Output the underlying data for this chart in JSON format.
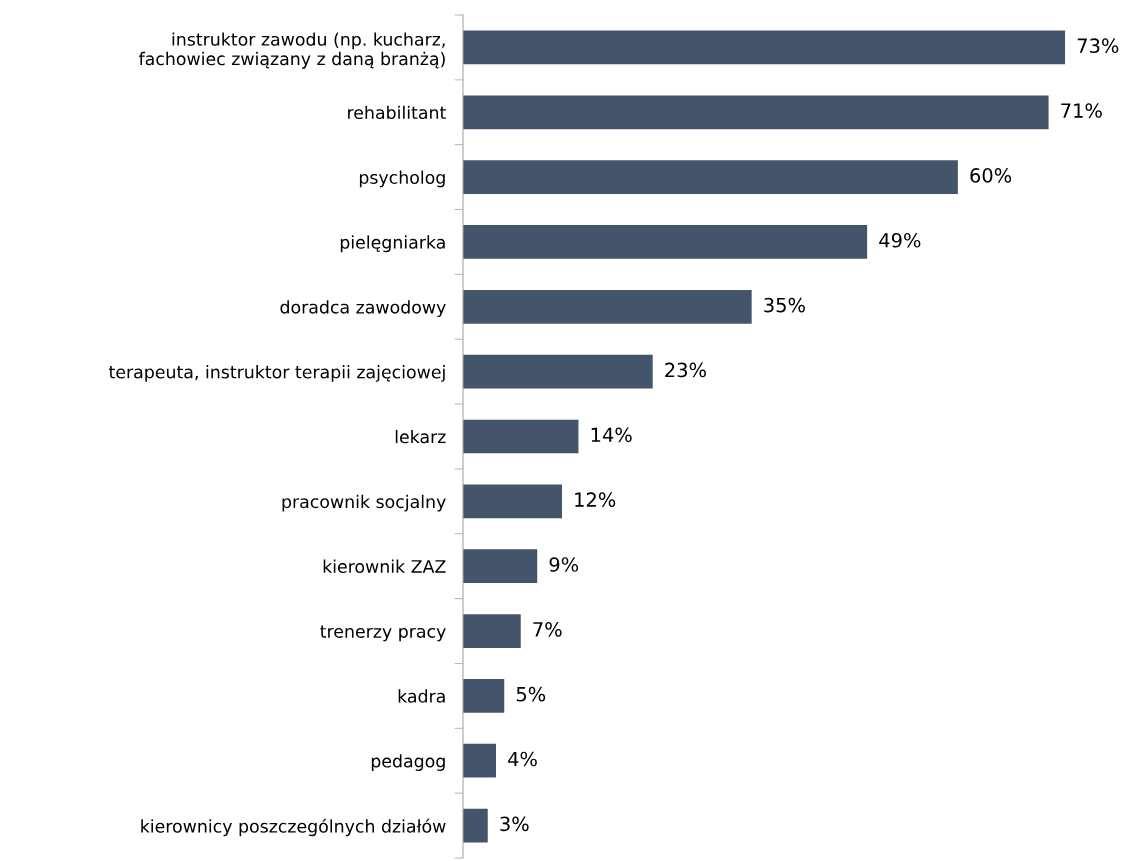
{
  "chart_data": {
    "type": "bar",
    "orientation": "horizontal",
    "categories": [
      "instruktor zawodu (np. kucharz,\nfachowiec związany z daną branżą)",
      "rehabilitant",
      "psycholog",
      "pielęgniarka",
      "doradca zawodowy",
      "terapeuta, instruktor terapii zajęciowej",
      "lekarz",
      "pracownik socjalny",
      "kierownik ZAZ",
      "trenerzy pracy",
      "kadra",
      "pedagog",
      "kierownicy poszczególnych działów"
    ],
    "values": [
      73,
      71,
      60,
      49,
      35,
      23,
      14,
      12,
      9,
      7,
      5,
      4,
      3
    ],
    "value_labels": [
      "73%",
      "71%",
      "60%",
      "49%",
      "35%",
      "23%",
      "14%",
      "12%",
      "9%",
      "7%",
      "5%",
      "4%",
      "3%"
    ],
    "color": "#44546a",
    "grid": false,
    "legend": false
  }
}
